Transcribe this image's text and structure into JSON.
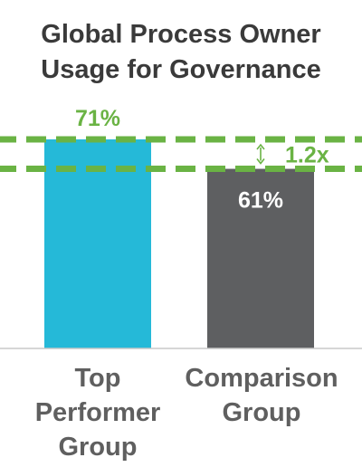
{
  "chart_data": {
    "type": "bar",
    "title_lines": [
      "Global Process Owner",
      "Usage for Governance"
    ],
    "categories": [
      [
        "Top",
        "Performer",
        "Group"
      ],
      [
        "Comparison",
        "Group"
      ]
    ],
    "values": [
      71,
      61
    ],
    "value_labels": [
      "71%",
      "61%"
    ],
    "ylim": [
      0,
      100
    ],
    "annotation": {
      "label": "1.2x"
    },
    "colors": {
      "bar_top": "#25b9d8",
      "bar_comparison": "#5e5f61",
      "accent_green": "#6ab344",
      "label_top": "#6ab344",
      "label_comparison": "#ffffff",
      "title": "#3a3a3a",
      "category": "#5f5f5f",
      "baseline": "#c8c8c8"
    }
  }
}
